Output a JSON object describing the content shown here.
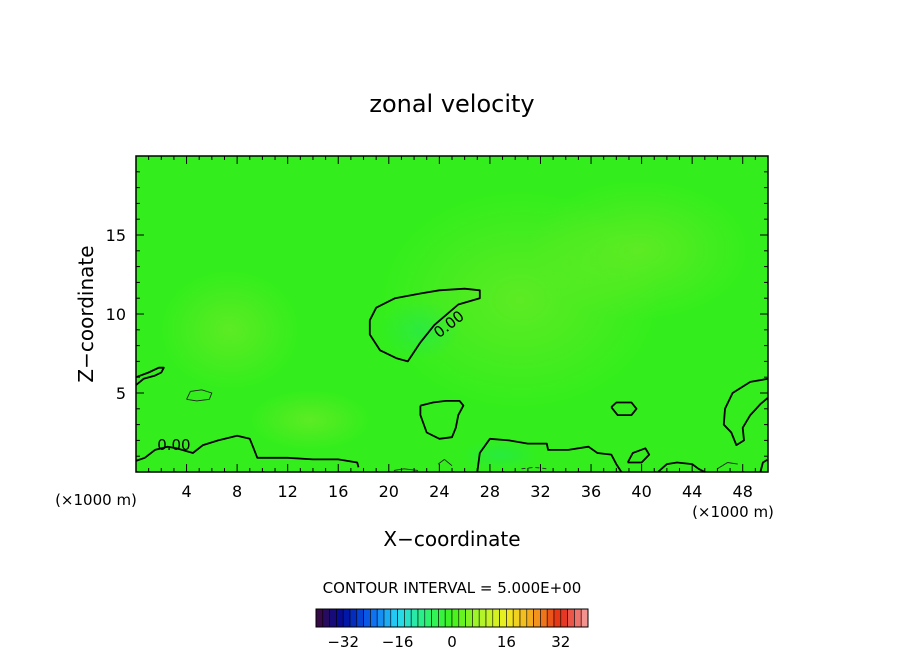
{
  "chart_data": {
    "type": "heatmap",
    "title": "zonal velocity",
    "xlabel": "X−coordinate",
    "ylabel": "Z−coordinate",
    "x_unit_left": "(×1000 m)",
    "x_unit_right": "(×1000 m)",
    "xlim": [
      0,
      50
    ],
    "ylim": [
      0,
      20
    ],
    "x_ticks": [
      {
        "value": 4,
        "label": "4"
      },
      {
        "value": 8,
        "label": "8"
      },
      {
        "value": 12,
        "label": "12"
      },
      {
        "value": 16,
        "label": "16"
      },
      {
        "value": 20,
        "label": "20"
      },
      {
        "value": 24,
        "label": "24"
      },
      {
        "value": 28,
        "label": "28"
      },
      {
        "value": 32,
        "label": "32"
      },
      {
        "value": 36,
        "label": "36"
      },
      {
        "value": 40,
        "label": "40"
      },
      {
        "value": 44,
        "label": "44"
      },
      {
        "value": 48,
        "label": "48"
      }
    ],
    "y_ticks": [
      {
        "value": 5,
        "label": "5"
      },
      {
        "value": 10,
        "label": "10"
      },
      {
        "value": 15,
        "label": "15"
      }
    ],
    "background_color": "#33ee1c",
    "contour_interval_text": "CONTOUR INTERVAL = 5.000E+00",
    "contours": [
      {
        "value": 0,
        "label": "0.00",
        "label_at": [
          25,
          9.1
        ],
        "points": [
          [
            18.5,
            9.6
          ],
          [
            19,
            10.4
          ],
          [
            20.5,
            11
          ],
          [
            22.5,
            11.3
          ],
          [
            24,
            11.5
          ],
          [
            26,
            11.6
          ],
          [
            27.2,
            11.5
          ],
          [
            27.2,
            11
          ],
          [
            25.5,
            10.6
          ],
          [
            23.6,
            9.3
          ],
          [
            22.5,
            8.2
          ],
          [
            21.5,
            7
          ],
          [
            20.6,
            7.2
          ],
          [
            19.3,
            7.7
          ],
          [
            18.5,
            8.7
          ],
          [
            18.5,
            9.6
          ]
        ]
      },
      {
        "value": 0,
        "label": "0.00",
        "label_at": [
          3,
          1.4
        ],
        "points": [
          [
            0,
            0.7
          ],
          [
            0.7,
            0.9
          ],
          [
            1.5,
            1.4
          ],
          [
            2.5,
            1.6
          ],
          [
            3.2,
            1.5
          ],
          [
            4.5,
            1.2
          ],
          [
            5.3,
            1.7
          ],
          [
            6.5,
            2
          ],
          [
            8,
            2.3
          ],
          [
            9,
            2.1
          ],
          [
            9.3,
            1.5
          ],
          [
            9.6,
            0.9
          ],
          [
            10.5,
            0.9
          ],
          [
            12,
            0.9
          ],
          [
            14,
            0.8
          ],
          [
            16,
            0.8
          ],
          [
            17.5,
            0.6
          ],
          [
            17.6,
            0.3
          ]
        ]
      },
      {
        "value": 0,
        "label": "",
        "points": [
          [
            0,
            5.5
          ],
          [
            0.6,
            5.9
          ],
          [
            1.5,
            6.1
          ],
          [
            2,
            6.3
          ],
          [
            2.2,
            6.6
          ],
          [
            1.8,
            6.6
          ],
          [
            1,
            6.3
          ],
          [
            0,
            6.0
          ]
        ]
      },
      {
        "value": 0,
        "label": "",
        "points": [
          [
            22.5,
            4.2
          ],
          [
            22.5,
            3.6
          ],
          [
            23,
            2.5
          ],
          [
            24,
            2.1
          ],
          [
            25,
            2.2
          ],
          [
            25.3,
            2.8
          ],
          [
            25.5,
            3.6
          ],
          [
            25.9,
            4.2
          ],
          [
            25.6,
            4.5
          ],
          [
            24.5,
            4.5
          ],
          [
            23.5,
            4.4
          ],
          [
            22.5,
            4.2
          ]
        ]
      },
      {
        "value": 0,
        "label": "",
        "points": [
          [
            37.6,
            4.1
          ],
          [
            38,
            4.4
          ],
          [
            39.2,
            4.4
          ],
          [
            39.6,
            4.0
          ],
          [
            39.2,
            3.6
          ],
          [
            38.1,
            3.6
          ],
          [
            37.6,
            4.1
          ]
        ]
      },
      {
        "value": 0,
        "label": "",
        "points": [
          [
            50,
            5.9
          ],
          [
            48.6,
            5.7
          ],
          [
            47.2,
            5.0
          ],
          [
            46.6,
            4.0
          ],
          [
            46.5,
            3.0
          ],
          [
            47.1,
            2.5
          ],
          [
            47.5,
            1.7
          ],
          [
            48.1,
            2.0
          ],
          [
            48,
            2.8
          ],
          [
            48.6,
            3.6
          ],
          [
            49.4,
            4.3
          ],
          [
            50,
            4.7
          ]
        ]
      },
      {
        "value": 0,
        "label": "",
        "points": [
          [
            27,
            0
          ],
          [
            27.2,
            1.2
          ],
          [
            28,
            2.1
          ],
          [
            29.5,
            2.0
          ],
          [
            31,
            1.8
          ],
          [
            32.5,
            1.8
          ],
          [
            32.6,
            1.4
          ],
          [
            33.5,
            1.4
          ],
          [
            34.2,
            1.4
          ],
          [
            35.8,
            1.6
          ],
          [
            36.5,
            1.2
          ],
          [
            37.6,
            1.1
          ],
          [
            38,
            0.5
          ],
          [
            38.4,
            0
          ]
        ]
      },
      {
        "value": 0,
        "label": "",
        "points": [
          [
            38.9,
            0.6
          ],
          [
            39.3,
            1.2
          ],
          [
            40.3,
            1.5
          ],
          [
            40.6,
            1.1
          ],
          [
            40,
            0.6
          ],
          [
            38.9,
            0.6
          ]
        ]
      },
      {
        "value": 0,
        "label": "",
        "points": [
          [
            41.3,
            0
          ],
          [
            42,
            0.5
          ],
          [
            42.8,
            0.6
          ],
          [
            44,
            0.5
          ],
          [
            44.5,
            0.2
          ],
          [
            45,
            0
          ]
        ]
      },
      {
        "value": 0,
        "label": "",
        "points": [
          [
            49.4,
            0
          ],
          [
            49.6,
            0.6
          ],
          [
            50,
            0.8
          ]
        ]
      }
    ],
    "thin_contours": [
      {
        "points": [
          [
            4,
            4.6
          ],
          [
            4.3,
            5.1
          ],
          [
            5.2,
            5.2
          ],
          [
            6,
            5.0
          ],
          [
            5.8,
            4.6
          ],
          [
            4.8,
            4.5
          ],
          [
            4,
            4.6
          ]
        ]
      },
      {
        "points": [
          [
            20.4,
            0.1
          ],
          [
            21.2,
            0.2
          ],
          [
            22.3,
            0.1
          ]
        ]
      },
      {
        "points": [
          [
            23.9,
            0.5
          ],
          [
            24.4,
            0.8
          ],
          [
            25,
            0.4
          ]
        ]
      },
      {
        "points": [
          [
            46,
            0.2
          ],
          [
            46.8,
            0.6
          ],
          [
            47.6,
            0.5
          ]
        ]
      }
    ],
    "dashed_contours": [
      {
        "points": [
          [
            30.5,
            0.2
          ],
          [
            31.5,
            0.3
          ],
          [
            32.5,
            0.2
          ]
        ]
      }
    ],
    "colorbar": {
      "range": [
        -40,
        40
      ],
      "step": 2,
      "ticks": [
        {
          "value": -32,
          "label": "−32"
        },
        {
          "value": -16,
          "label": "−16"
        },
        {
          "value": 0,
          "label": "0"
        },
        {
          "value": 16,
          "label": "16"
        },
        {
          "value": 32,
          "label": "32"
        }
      ],
      "colors": [
        "#3d0a3a",
        "#000c9e",
        "#0a63f0",
        "#26d7f4",
        "#2bf27a",
        "#3ef21a",
        "#aaf52a",
        "#efef20",
        "#f5a21f",
        "#e52914",
        "#f4a2a2"
      ]
    }
  }
}
